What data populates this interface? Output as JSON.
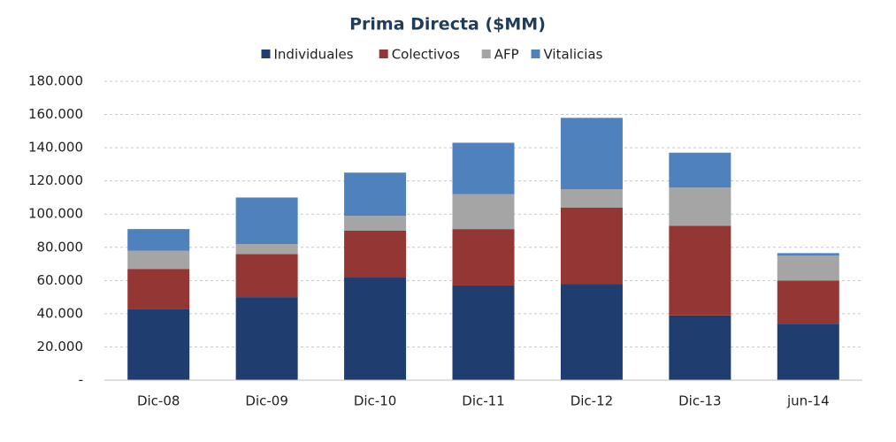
{
  "chart_data": {
    "type": "stacked_bar",
    "title": "Prima Directa ($MM)",
    "categories": [
      "Dic-08",
      "Dic-09",
      "Dic-10",
      "Dic-11",
      "Dic-12",
      "Dic-13",
      "jun-14"
    ],
    "series": [
      {
        "name": "Individuales",
        "color": "#1f3d6e",
        "values": [
          43000,
          50000,
          62000,
          57000,
          58000,
          39000,
          34000
        ]
      },
      {
        "name": "Colectivos",
        "color": "#943634",
        "values": [
          24000,
          26000,
          28000,
          34000,
          46000,
          54000,
          26000
        ]
      },
      {
        "name": "AFP",
        "color": "#a5a5a5",
        "values": [
          11000,
          6000,
          9000,
          21000,
          11000,
          23000,
          15000
        ]
      },
      {
        "name": "Vitalicias",
        "color": "#4f81bd",
        "values": [
          13000,
          28000,
          26000,
          31000,
          43000,
          21000,
          1500
        ]
      }
    ],
    "ylim": [
      0,
      180000
    ],
    "yticks": [
      {
        "value": 0,
        "label": "-"
      },
      {
        "value": 20000,
        "label": "20.000"
      },
      {
        "value": 40000,
        "label": "40.000"
      },
      {
        "value": 60000,
        "label": "60.000"
      },
      {
        "value": 80000,
        "label": "80.000"
      },
      {
        "value": 100000,
        "label": "100.000"
      },
      {
        "value": 120000,
        "label": "120.000"
      },
      {
        "value": 140000,
        "label": "140.000"
      },
      {
        "value": 160000,
        "label": "160.000"
      },
      {
        "value": 180000,
        "label": "180.000"
      }
    ],
    "grid": true,
    "legend": "top"
  }
}
